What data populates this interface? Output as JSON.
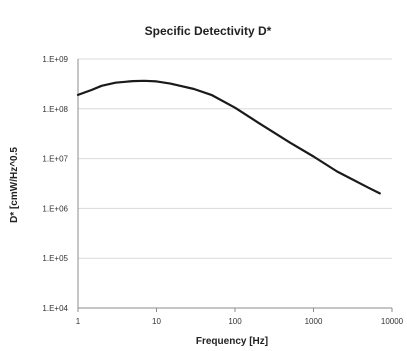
{
  "chart_data": {
    "type": "line",
    "title": "Specific Detectivity D*",
    "xlabel": "Frequency [Hz]",
    "ylabel": "D* [cmW/Hz^0.5",
    "x_scale": "log",
    "y_scale": "log",
    "xlim": [
      1,
      10000
    ],
    "ylim": [
      10000,
      1000000000
    ],
    "x_ticks": [
      1,
      10,
      100,
      1000,
      10000
    ],
    "x_tick_labels": [
      "1",
      "10",
      "100",
      "1000",
      "10000"
    ],
    "y_ticks": [
      10000,
      100000,
      1000000,
      10000000,
      100000000,
      1000000000
    ],
    "y_tick_labels": [
      "1.E+04",
      "1.E+05",
      "1.E+06",
      "1.E+07",
      "1.E+08",
      "1.E+09"
    ],
    "grid": "horizontal",
    "legend": "none",
    "series": [
      {
        "color": "#1a1a1a",
        "x": [
          1,
          1.5,
          2,
          3,
          5,
          7,
          10,
          15,
          20,
          30,
          50,
          100,
          200,
          500,
          1000,
          2000,
          5000,
          7000
        ],
        "y": [
          190000000,
          240000000,
          290000000,
          335000000,
          360000000,
          365000000,
          355000000,
          320000000,
          290000000,
          250000000,
          190000000,
          105000000,
          52000000,
          21000000,
          11000000,
          5500000,
          2600000,
          2000000
        ]
      }
    ]
  }
}
